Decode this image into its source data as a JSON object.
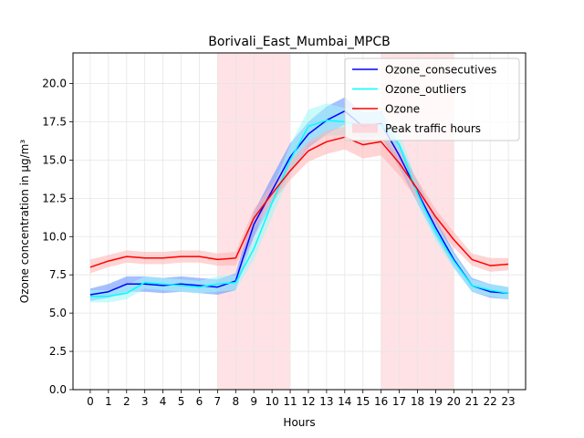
{
  "chart_data": {
    "type": "line",
    "title": "Borivali_East_Mumbai_MPCB",
    "xlabel": "Hours",
    "ylabel": "Ozone concentration in μg/m³",
    "xlim": [
      -0.95,
      23.95
    ],
    "ylim": [
      0,
      22
    ],
    "x": [
      0,
      1,
      2,
      3,
      4,
      5,
      6,
      7,
      8,
      9,
      10,
      11,
      12,
      13,
      14,
      15,
      16,
      17,
      18,
      19,
      20,
      21,
      22,
      23
    ],
    "x_tick_labels": [
      "0",
      "1",
      "2",
      "3",
      "4",
      "5",
      "6",
      "7",
      "8",
      "9",
      "10",
      "11",
      "12",
      "13",
      "14",
      "15",
      "16",
      "17",
      "18",
      "19",
      "20",
      "21",
      "22",
      "23"
    ],
    "y_ticks": [
      0,
      2.5,
      5,
      7.5,
      10,
      12.5,
      15,
      17.5,
      20
    ],
    "y_tick_labels": [
      "0.0",
      "2.5",
      "5.0",
      "7.5",
      "10.0",
      "12.5",
      "15.0",
      "17.5",
      "20.0"
    ],
    "grid": true,
    "legend_position": "top-right",
    "peak_traffic_hours": {
      "label": "Peak traffic hours",
      "color": "#ffcfd4",
      "ranges": [
        [
          7,
          11
        ],
        [
          16,
          20
        ]
      ]
    },
    "series": [
      {
        "name": "Ozone_consecutives",
        "color": "#0000ff",
        "band_color": "#5a8cff",
        "values": [
          6.2,
          6.4,
          6.9,
          6.9,
          6.8,
          6.9,
          6.8,
          6.7,
          7.1,
          10.8,
          13.0,
          15.2,
          16.7,
          17.6,
          18.2,
          17.2,
          17.4,
          15.3,
          12.9,
          10.6,
          8.5,
          6.8,
          6.4,
          6.3
        ],
        "lower": [
          5.8,
          6.0,
          6.4,
          6.4,
          6.3,
          6.4,
          6.3,
          6.2,
          6.5,
          10.0,
          12.1,
          14.2,
          15.8,
          16.7,
          17.3,
          16.4,
          16.6,
          14.5,
          12.2,
          10.0,
          8.0,
          6.4,
          6.0,
          5.9
        ],
        "upper": [
          6.6,
          6.9,
          7.4,
          7.4,
          7.3,
          7.4,
          7.3,
          7.2,
          7.6,
          11.6,
          13.9,
          16.1,
          17.5,
          18.5,
          19.1,
          18.1,
          18.2,
          16.1,
          13.6,
          11.2,
          9.0,
          7.3,
          6.9,
          6.7
        ]
      },
      {
        "name": "Ozone_outliers",
        "color": "#00ffff",
        "band_color": "#9ff7f7",
        "values": [
          6.1,
          6.1,
          6.3,
          7.0,
          6.9,
          6.8,
          6.7,
          6.9,
          7.0,
          9.2,
          12.2,
          15.0,
          17.2,
          17.6,
          17.5,
          17.3,
          17.3,
          16.0,
          12.8,
          10.3,
          8.4,
          6.8,
          6.5,
          6.3
        ],
        "lower": [
          5.7,
          5.7,
          5.9,
          6.6,
          6.5,
          6.4,
          6.3,
          6.4,
          6.5,
          8.5,
          11.3,
          14.0,
          16.1,
          16.6,
          16.6,
          16.4,
          16.5,
          15.2,
          12.1,
          9.7,
          7.9,
          6.4,
          6.1,
          5.9
        ],
        "upper": [
          6.5,
          6.5,
          6.8,
          7.4,
          7.3,
          7.2,
          7.1,
          7.4,
          7.5,
          9.9,
          13.1,
          16.0,
          18.3,
          18.7,
          18.4,
          18.2,
          18.1,
          16.8,
          13.5,
          10.9,
          8.9,
          7.2,
          6.9,
          6.7
        ]
      },
      {
        "name": "Ozone",
        "color": "#ff0000",
        "band_color": "#ffb0b0",
        "values": [
          8.0,
          8.4,
          8.7,
          8.6,
          8.6,
          8.7,
          8.7,
          8.5,
          8.6,
          11.2,
          12.8,
          14.3,
          15.6,
          16.2,
          16.5,
          16.0,
          16.2,
          14.8,
          13.1,
          11.3,
          9.8,
          8.5,
          8.1,
          8.2
        ],
        "lower": [
          7.6,
          8.0,
          8.3,
          8.2,
          8.2,
          8.3,
          8.3,
          8.1,
          8.1,
          10.6,
          12.2,
          13.7,
          14.9,
          15.4,
          15.7,
          15.1,
          15.3,
          14.0,
          12.4,
          10.8,
          9.3,
          8.1,
          7.7,
          7.8
        ],
        "upper": [
          8.5,
          8.8,
          9.1,
          9.0,
          9.0,
          9.1,
          9.1,
          8.9,
          9.0,
          11.8,
          13.4,
          14.9,
          16.2,
          16.9,
          17.2,
          16.8,
          17.0,
          15.6,
          13.7,
          11.8,
          10.3,
          8.9,
          8.6,
          8.6
        ]
      }
    ]
  }
}
